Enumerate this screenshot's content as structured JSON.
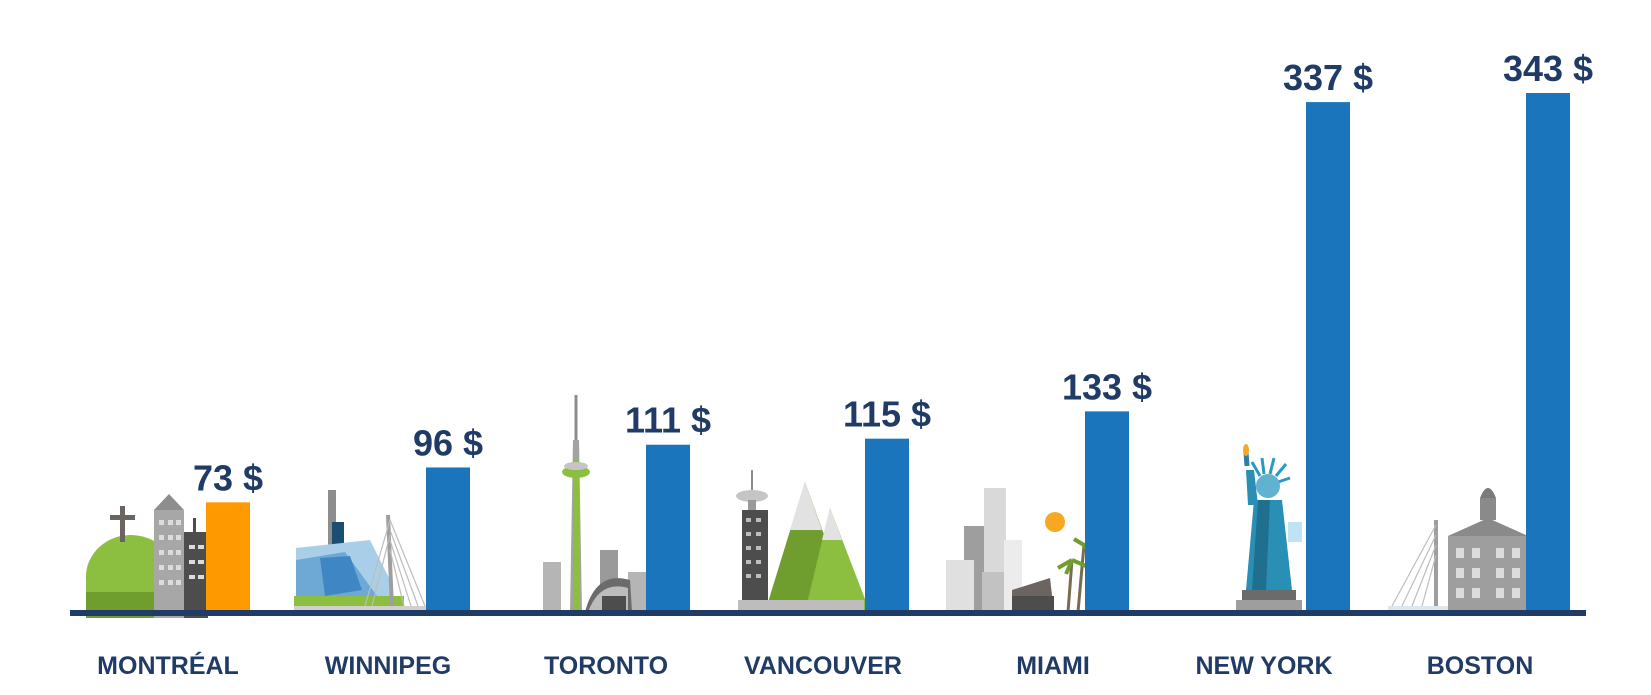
{
  "chart_data": {
    "type": "bar",
    "categories": [
      "MONTRÉAL",
      "WINNIPEG",
      "TORONTO",
      "VANCOUVER",
      "MIAMI",
      "NEW YORK",
      "BOSTON"
    ],
    "values": [
      73,
      96,
      111,
      115,
      133,
      337,
      343
    ],
    "value_labels": [
      "73 $",
      "96 $",
      "111 $",
      "115 $",
      "133 $",
      "337 $",
      "343 $"
    ],
    "highlight_index": 0,
    "title": "",
    "xlabel": "",
    "ylabel": "",
    "ylim": [
      0,
      343
    ],
    "grid": false,
    "legend": "none",
    "colors": {
      "bar": "#1b75bc",
      "highlight": "#ff9900",
      "label": "#1f3b66",
      "baseline": "#1f3b66"
    },
    "icons": [
      "montreal-skyline-icon",
      "winnipeg-skyline-icon",
      "toronto-skyline-icon",
      "vancouver-skyline-icon",
      "miami-skyline-icon",
      "statue-of-liberty-icon",
      "boston-skyline-icon"
    ]
  }
}
